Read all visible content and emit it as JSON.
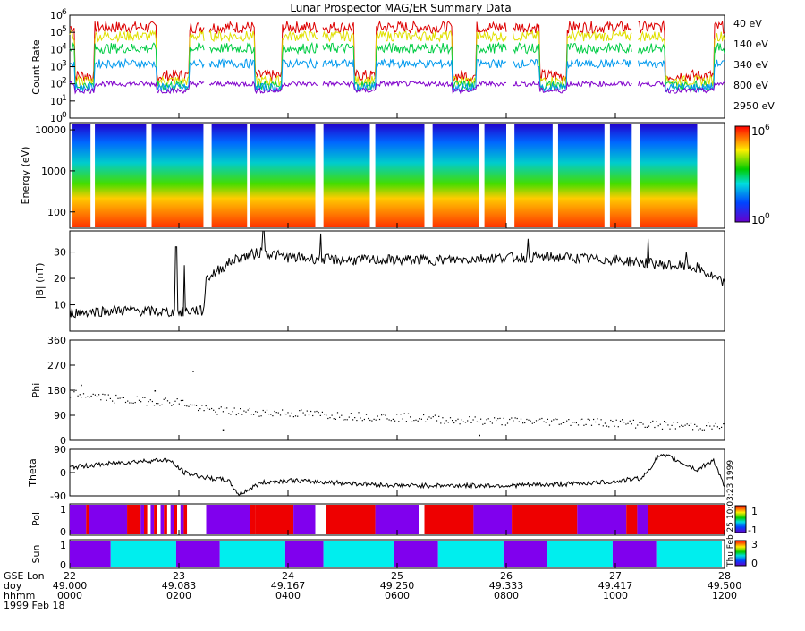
{
  "title": "Lunar Prospector MAG/ER Summary Data",
  "date_label": "1999 Feb 18",
  "chart_data": [
    {
      "id": "count-rate",
      "type": "line",
      "ylabel": "Count Rate",
      "y_scale": "log",
      "ylim": [
        1,
        1000000
      ],
      "ytick_exponents": [
        "6",
        "5",
        "4",
        "3",
        "2",
        "1",
        "0"
      ],
      "x_domain": [
        0,
        12
      ],
      "gaps": [
        [
          2.47,
          2.55
        ],
        [
          4.55,
          4.62
        ],
        [
          8.0,
          8.1
        ],
        [
          10.3,
          10.4
        ]
      ],
      "series": [
        {
          "name": "40 eV",
          "color": "#dd0000",
          "base": 200000,
          "low": 300,
          "noise": 0.35
        },
        {
          "name": "140 eV",
          "color": "#e0e000",
          "base": 60000,
          "low": 150,
          "noise": 0.3
        },
        {
          "name": "340 eV",
          "color": "#00cc44",
          "base": 12000,
          "low": 80,
          "noise": 0.3
        },
        {
          "name": "800 eV",
          "color": "#0099ee",
          "base": 1500,
          "low": 60,
          "noise": 0.25
        },
        {
          "name": "2950 eV",
          "color": "#8000cc",
          "base": 100,
          "low": 40,
          "noise": 0.15
        }
      ]
    },
    {
      "id": "energy-spectrogram",
      "type": "heatmap",
      "ylabel": "Energy (eV)",
      "y_scale": "log",
      "ylim": [
        40,
        15000
      ],
      "yticks": [
        "10000",
        "1000",
        "100"
      ],
      "colorbar": {
        "min_exp": "0",
        "max_exp": "6",
        "base": "10"
      },
      "blocks": [
        [
          0.05,
          0.38
        ],
        [
          0.46,
          1.4
        ],
        [
          1.5,
          2.45
        ],
        [
          2.6,
          3.25
        ],
        [
          3.3,
          4.5
        ],
        [
          4.65,
          5.5
        ],
        [
          5.6,
          6.5
        ],
        [
          6.65,
          7.5
        ],
        [
          7.6,
          8.0
        ],
        [
          8.15,
          8.85
        ],
        [
          8.95,
          9.8
        ],
        [
          9.9,
          10.3
        ],
        [
          10.45,
          11.5
        ]
      ]
    },
    {
      "id": "field-magnitude",
      "type": "line",
      "ylabel": "|B| (nT)",
      "ylim": [
        0,
        38
      ],
      "yticks": [
        10,
        20,
        30
      ],
      "profile": [
        [
          0,
          7
        ],
        [
          1,
          8
        ],
        [
          2,
          7
        ],
        [
          2.3,
          8
        ],
        [
          2.45,
          7.5
        ],
        [
          2.5,
          20
        ],
        [
          3,
          27
        ],
        [
          3.5,
          30
        ],
        [
          4,
          28
        ],
        [
          5,
          27
        ],
        [
          6,
          27
        ],
        [
          7,
          27
        ],
        [
          8,
          28
        ],
        [
          9,
          28
        ],
        [
          10,
          27
        ],
        [
          10.5,
          26
        ],
        [
          11,
          25
        ],
        [
          11.5,
          24
        ],
        [
          12,
          18
        ]
      ],
      "spikes": [
        [
          1.95,
          32
        ],
        [
          2.1,
          25
        ],
        [
          3.55,
          38
        ],
        [
          4.6,
          37
        ],
        [
          8.4,
          35
        ],
        [
          10.6,
          35
        ],
        [
          11.3,
          30
        ]
      ]
    },
    {
      "id": "phi",
      "type": "scatter",
      "ylabel": "Phi",
      "ylim": [
        0,
        360
      ],
      "yticks": [
        0,
        90,
        180,
        270,
        360
      ],
      "profile": [
        [
          0,
          170
        ],
        [
          0.5,
          160
        ],
        [
          1,
          145
        ],
        [
          2,
          140
        ],
        [
          2.5,
          110
        ],
        [
          3,
          105
        ],
        [
          4,
          100
        ],
        [
          5,
          90
        ],
        [
          6,
          85
        ],
        [
          7,
          75
        ],
        [
          8,
          70
        ],
        [
          9,
          70
        ],
        [
          10,
          65
        ],
        [
          11,
          55
        ],
        [
          12,
          50
        ]
      ],
      "outliers": [
        [
          2.25,
          250
        ],
        [
          1.55,
          180
        ],
        [
          0.2,
          200
        ],
        [
          2.8,
          40
        ],
        [
          7.5,
          20
        ]
      ]
    },
    {
      "id": "theta",
      "type": "line",
      "ylabel": "Theta",
      "ylim": [
        -90,
        90
      ],
      "yticks": [
        "-90",
        "0",
        "90"
      ],
      "profile": [
        [
          0,
          20
        ],
        [
          0.5,
          30
        ],
        [
          1,
          40
        ],
        [
          1.8,
          50
        ],
        [
          2.1,
          0
        ],
        [
          2.5,
          -20
        ],
        [
          2.9,
          -30
        ],
        [
          3.1,
          -85
        ],
        [
          3.5,
          -40
        ],
        [
          4,
          -30
        ],
        [
          5,
          -40
        ],
        [
          6,
          -50
        ],
        [
          7,
          -50
        ],
        [
          8,
          -50
        ],
        [
          9,
          -45
        ],
        [
          10,
          -35
        ],
        [
          10.5,
          -20
        ],
        [
          10.8,
          65
        ],
        [
          11,
          60
        ],
        [
          11.5,
          10
        ],
        [
          11.8,
          50
        ],
        [
          12,
          -60
        ]
      ]
    },
    {
      "id": "polarity",
      "type": "heatmap",
      "ylabel": "Pol",
      "ylim": [
        0,
        1
      ],
      "ytick_top": "1",
      "ytick_bottom": "0",
      "colorbar": {
        "top": "1",
        "bottom": "-1"
      },
      "segments": [
        [
          0,
          0.3,
          "v"
        ],
        [
          0.3,
          0.35,
          "r"
        ],
        [
          0.35,
          1.05,
          "v"
        ],
        [
          1.05,
          1.3,
          "r"
        ],
        [
          1.3,
          2.15,
          "mix"
        ],
        [
          2.15,
          2.5,
          "w"
        ],
        [
          2.5,
          3.3,
          "v"
        ],
        [
          3.3,
          3.4,
          "r"
        ],
        [
          3.4,
          4.1,
          "r"
        ],
        [
          4.1,
          4.5,
          "v"
        ],
        [
          4.5,
          4.7,
          "w"
        ],
        [
          4.7,
          5.6,
          "r"
        ],
        [
          5.6,
          6.4,
          "v"
        ],
        [
          6.4,
          6.5,
          "w"
        ],
        [
          6.5,
          7.4,
          "r"
        ],
        [
          7.4,
          8.1,
          "v"
        ],
        [
          8.1,
          9.3,
          "r"
        ],
        [
          9.3,
          10.2,
          "v"
        ],
        [
          10.2,
          10.4,
          "r"
        ],
        [
          10.4,
          10.6,
          "v"
        ],
        [
          10.6,
          12,
          "r"
        ]
      ]
    },
    {
      "id": "sun",
      "type": "heatmap",
      "ylabel": "Sun",
      "ylim": [
        0,
        1
      ],
      "ytick_top": "1",
      "ytick_bottom": "0",
      "colorbar": {
        "top": "3",
        "bottom": "0"
      },
      "segments": [
        [
          0,
          0.75,
          "v"
        ],
        [
          0.75,
          1.95,
          "c"
        ],
        [
          1.95,
          2.75,
          "v"
        ],
        [
          2.75,
          3.95,
          "c"
        ],
        [
          3.95,
          4.65,
          "v"
        ],
        [
          4.65,
          5.95,
          "c"
        ],
        [
          5.95,
          6.75,
          "v"
        ],
        [
          6.75,
          7.95,
          "c"
        ],
        [
          7.95,
          8.75,
          "v"
        ],
        [
          8.75,
          9.95,
          "c"
        ],
        [
          9.95,
          10.75,
          "v"
        ],
        [
          10.75,
          11.95,
          "c"
        ]
      ]
    }
  ],
  "side_text": "Thu Feb 25 10:03:23 1999",
  "x_axis": {
    "row_labels": [
      "GSE Lon",
      "doy",
      "hhmm"
    ],
    "ticks": [
      {
        "lon": "22",
        "doy": "49.000",
        "hhmm": "0000"
      },
      {
        "lon": "23",
        "doy": "49.083",
        "hhmm": "0200"
      },
      {
        "lon": "24",
        "doy": "49.167",
        "hhmm": "0400"
      },
      {
        "lon": "25",
        "doy": "49.250",
        "hhmm": "0600"
      },
      {
        "lon": "26",
        "doy": "49.333",
        "hhmm": "0800"
      },
      {
        "lon": "27",
        "doy": "49.417",
        "hhmm": "1000"
      },
      {
        "lon": "28",
        "doy": "49.500",
        "hhmm": "1200"
      }
    ]
  }
}
